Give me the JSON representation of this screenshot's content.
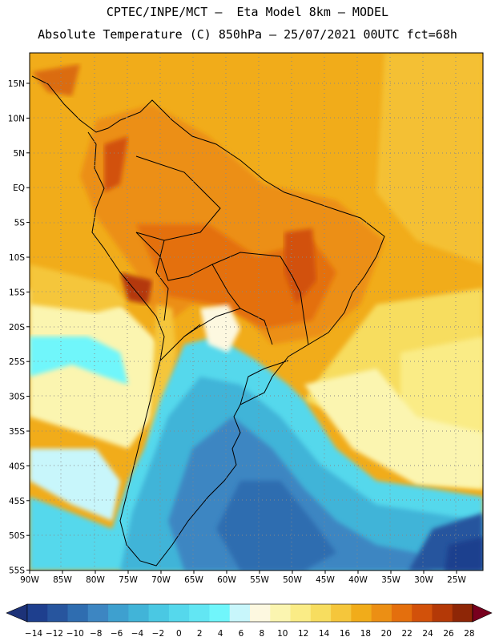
{
  "header": {
    "line1": "CPTEC/INPE/MCT –  Eta Model 8km – MODEL",
    "line2": "Absolute Temperature (C) 850hPa – 25/07/2021 00UTC fct=68h"
  },
  "map": {
    "lon_labels": [
      "90W",
      "85W",
      "80W",
      "75W",
      "70W",
      "65W",
      "60W",
      "55W",
      "50W",
      "45W",
      "40W",
      "35W",
      "30W",
      "25W"
    ],
    "lat_labels": [
      "15N",
      "10N",
      "5N",
      "EQ",
      "5S",
      "10S",
      "15S",
      "20S",
      "25S",
      "30S",
      "35S",
      "40S",
      "45S",
      "50S",
      "55S"
    ],
    "gridlines": "dotted"
  },
  "colorbar": {
    "tick_labels": [
      "-14",
      "-12",
      "-10",
      "-8",
      "-6",
      "-4",
      "-2",
      "0",
      "2",
      "4",
      "6",
      "8",
      "10",
      "12",
      "14",
      "16",
      "18",
      "20",
      "22",
      "24",
      "26",
      "28"
    ],
    "colors": [
      "#1e3f8e",
      "#27559e",
      "#2f6db0",
      "#3d86c2",
      "#3ea0cf",
      "#41b4d8",
      "#4ac8e3",
      "#55d8ec",
      "#62e6f3",
      "#70f6fb",
      "#c8f6fb",
      "#fdf8e0",
      "#fbf5b0",
      "#faec86",
      "#f7dd5f",
      "#f5c63b",
      "#f1ac1a",
      "#ec8f14",
      "#e46f0d",
      "#d2510a",
      "#b43907",
      "#8e2606"
    ],
    "under_color": "#1d3278",
    "over_color": "#78001e"
  }
}
